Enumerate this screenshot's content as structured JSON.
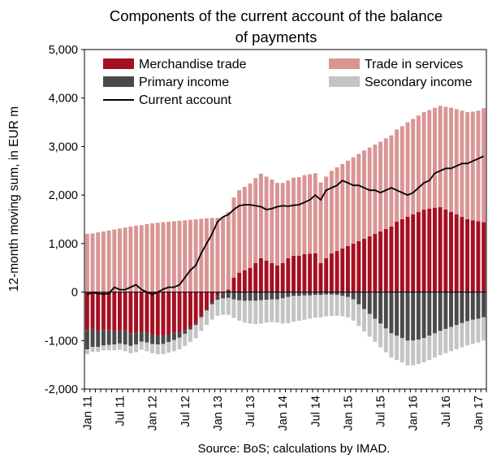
{
  "chart_data": {
    "type": "bar",
    "stacked": true,
    "title_line1": "Components of the current account of the balance",
    "title_line2": "of payments",
    "ylabel": "12-month moving sum, in EUR m",
    "source": "Source: BoS; calculations by IMAD.",
    "ylim": [
      -2000,
      5000
    ],
    "yticks": [
      5000,
      4000,
      3000,
      2000,
      1000,
      0,
      -1000,
      -2000
    ],
    "ytick_labels": [
      "5,000",
      "4,000",
      "3,000",
      "2,000",
      "1,000",
      "0",
      "-1,000",
      "-2,000"
    ],
    "xtick_labels": [
      "Jan 11",
      "Jul 11",
      "Jan 12",
      "Jul 12",
      "Jan 13",
      "Jul 13",
      "Jan 14",
      "Jul 14",
      "Jan 15",
      "Jul 15",
      "Jan 16",
      "Jul 16",
      "Jan 17"
    ],
    "grid": false,
    "legend_position": "top",
    "x": [
      "2011-01",
      "2011-02",
      "2011-03",
      "2011-04",
      "2011-05",
      "2011-06",
      "2011-07",
      "2011-08",
      "2011-09",
      "2011-10",
      "2011-11",
      "2011-12",
      "2012-01",
      "2012-02",
      "2012-03",
      "2012-04",
      "2012-05",
      "2012-06",
      "2012-07",
      "2012-08",
      "2012-09",
      "2012-10",
      "2012-11",
      "2012-12",
      "2013-01",
      "2013-02",
      "2013-03",
      "2013-04",
      "2013-05",
      "2013-06",
      "2013-07",
      "2013-08",
      "2013-09",
      "2013-10",
      "2013-11",
      "2013-12",
      "2014-01",
      "2014-02",
      "2014-03",
      "2014-04",
      "2014-05",
      "2014-06",
      "2014-07",
      "2014-08",
      "2014-09",
      "2014-10",
      "2014-11",
      "2014-12",
      "2015-01",
      "2015-02",
      "2015-03",
      "2015-04",
      "2015-05",
      "2015-06",
      "2015-07",
      "2015-08",
      "2015-09",
      "2015-10",
      "2015-11",
      "2015-12",
      "2016-01",
      "2016-02",
      "2016-03",
      "2016-04",
      "2016-05",
      "2016-06",
      "2016-07",
      "2016-08",
      "2016-09",
      "2016-10",
      "2016-11",
      "2016-12",
      "2017-01",
      "2017-02"
    ],
    "series": [
      {
        "name": "Merchandise trade",
        "kind": "bar",
        "color": "#a50f20",
        "values": [
          -780,
          -760,
          -800,
          -780,
          -790,
          -800,
          -790,
          -800,
          -850,
          -830,
          -820,
          -840,
          -870,
          -900,
          -900,
          -870,
          -840,
          -820,
          -780,
          -720,
          -650,
          -500,
          -350,
          -200,
          -80,
          -30,
          50,
          300,
          400,
          450,
          500,
          600,
          700,
          650,
          600,
          550,
          600,
          700,
          750,
          750,
          780,
          790,
          800,
          600,
          700,
          800,
          850,
          900,
          950,
          1000,
          1050,
          1100,
          1150,
          1200,
          1250,
          1300,
          1350,
          1450,
          1500,
          1550,
          1600,
          1650,
          1700,
          1720,
          1740,
          1750,
          1700,
          1650,
          1600,
          1550,
          1500,
          1480,
          1460,
          1440
        ]
      },
      {
        "name": "Trade in services",
        "kind": "bar",
        "color": "#d99594",
        "values": [
          1200,
          1210,
          1230,
          1250,
          1270,
          1290,
          1310,
          1330,
          1350,
          1370,
          1380,
          1400,
          1420,
          1430,
          1440,
          1450,
          1460,
          1470,
          1480,
          1490,
          1500,
          1510,
          1520,
          1530,
          1530,
          1550,
          1600,
          1650,
          1700,
          1720,
          1740,
          1750,
          1740,
          1730,
          1720,
          1700,
          1650,
          1600,
          1610,
          1620,
          1630,
          1640,
          1650,
          1660,
          1680,
          1700,
          1720,
          1740,
          1760,
          1780,
          1800,
          1820,
          1830,
          1840,
          1850,
          1870,
          1880,
          1900,
          1920,
          1950,
          1970,
          1990,
          2010,
          2030,
          2060,
          2090,
          2120,
          2150,
          2170,
          2190,
          2210,
          2240,
          2280,
          2350
        ]
      },
      {
        "name": "Primary income",
        "kind": "bar",
        "color": "#4a4a4a",
        "values": [
          -400,
          -370,
          -330,
          -320,
          -300,
          -280,
          -270,
          -280,
          -260,
          -250,
          -200,
          -200,
          -200,
          -180,
          -170,
          -160,
          -150,
          -120,
          -80,
          -50,
          -30,
          -20,
          -30,
          -50,
          -80,
          -100,
          -120,
          -150,
          -170,
          -180,
          -180,
          -180,
          -170,
          -160,
          -150,
          -150,
          -130,
          -100,
          -80,
          -80,
          -70,
          -70,
          -60,
          -60,
          -50,
          -50,
          -60,
          -80,
          -100,
          -150,
          -250,
          -350,
          -450,
          -550,
          -650,
          -750,
          -850,
          -900,
          -950,
          -1000,
          -1000,
          -980,
          -950,
          -900,
          -850,
          -800,
          -760,
          -720,
          -680,
          -640,
          -600,
          -570,
          -550,
          -520
        ]
      },
      {
        "name": "Secondary income",
        "kind": "bar",
        "color": "#c4c4c4",
        "values": [
          -100,
          -100,
          -100,
          -100,
          -110,
          -120,
          -130,
          -140,
          -150,
          -160,
          -170,
          -180,
          -190,
          -200,
          -210,
          -220,
          -230,
          -240,
          -250,
          -260,
          -270,
          -280,
          -300,
          -320,
          -330,
          -340,
          -350,
          -380,
          -420,
          -450,
          -470,
          -480,
          -480,
          -470,
          -470,
          -480,
          -520,
          -540,
          -530,
          -510,
          -500,
          -480,
          -470,
          -460,
          -450,
          -440,
          -430,
          -420,
          -420,
          -440,
          -450,
          -460,
          -470,
          -480,
          -490,
          -490,
          -500,
          -500,
          -500,
          -510,
          -510,
          -500,
          -500,
          -500,
          -500,
          -500,
          -500,
          -500,
          -500,
          -500,
          -500,
          -500,
          -490,
          -480
        ]
      },
      {
        "name": "Current account",
        "kind": "line",
        "color": "#000000",
        "values": [
          -50,
          -10,
          -30,
          -40,
          -30,
          100,
          50,
          50,
          100,
          150,
          50,
          0,
          -50,
          0,
          60,
          100,
          100,
          150,
          300,
          450,
          550,
          800,
          1000,
          1200,
          1450,
          1550,
          1600,
          1700,
          1780,
          1800,
          1800,
          1780,
          1760,
          1700,
          1720,
          1760,
          1780,
          1770,
          1790,
          1800,
          1850,
          1900,
          2000,
          1900,
          2100,
          2150,
          2200,
          2300,
          2250,
          2200,
          2200,
          2150,
          2100,
          2100,
          2050,
          2100,
          2150,
          2100,
          2050,
          2000,
          2050,
          2150,
          2250,
          2300,
          2450,
          2500,
          2550,
          2550,
          2600,
          2650,
          2650,
          2700,
          2750,
          2800
        ]
      }
    ]
  },
  "legend": [
    {
      "label": "Merchandise trade",
      "color": "#a50f20",
      "kind": "box"
    },
    {
      "label": "Trade in services",
      "color": "#d99594",
      "kind": "box"
    },
    {
      "label": "Primary income",
      "color": "#4a4a4a",
      "kind": "box"
    },
    {
      "label": "Secondary income",
      "color": "#c4c4c4",
      "kind": "box"
    },
    {
      "label": "Current account",
      "color": "#000000",
      "kind": "line"
    }
  ]
}
